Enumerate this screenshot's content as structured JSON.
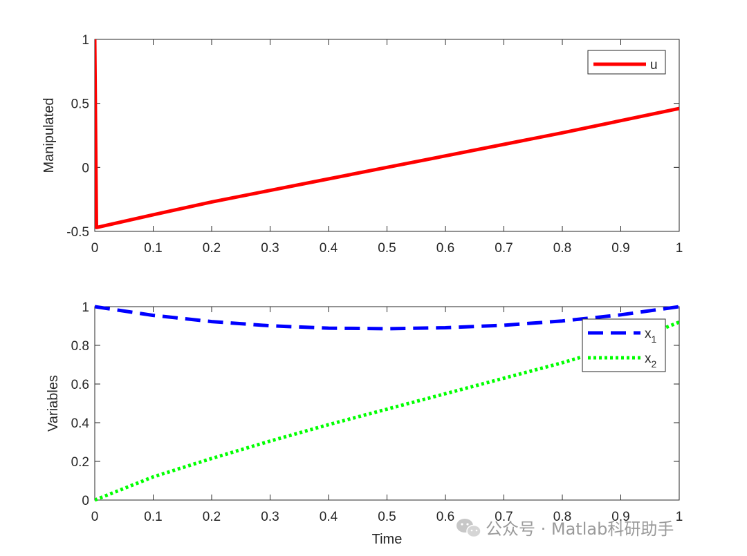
{
  "chart_data": [
    {
      "type": "line",
      "ylabel": "Manipulated",
      "xlabel": "",
      "xlim": [
        0,
        1
      ],
      "ylim": [
        -0.5,
        1
      ],
      "xticks": [
        "0",
        "0.1",
        "0.2",
        "0.3",
        "0.4",
        "0.5",
        "0.6",
        "0.7",
        "0.8",
        "0.9",
        "1"
      ],
      "yticks": [
        "-0.5",
        "0",
        "0.5",
        "1"
      ],
      "legend_position": "top-right",
      "series": [
        {
          "name": "u",
          "color": "#ff0000",
          "style": "solid",
          "x": [
            0,
            0.003,
            0.1,
            0.2,
            0.3,
            0.4,
            0.5,
            0.6,
            0.7,
            0.8,
            0.9,
            1.0
          ],
          "y": [
            1.0,
            -0.47,
            -0.37,
            -0.27,
            -0.18,
            -0.09,
            0.0,
            0.09,
            0.18,
            0.27,
            0.365,
            0.46
          ]
        }
      ]
    },
    {
      "type": "line",
      "ylabel": "Variables",
      "xlabel": "Time",
      "xlim": [
        0,
        1
      ],
      "ylim": [
        0,
        1
      ],
      "xticks": [
        "0",
        "0.1",
        "0.2",
        "0.3",
        "0.4",
        "0.5",
        "0.6",
        "0.7",
        "0.8",
        "0.9",
        "1"
      ],
      "yticks": [
        "0",
        "0.2",
        "0.4",
        "0.6",
        "0.8",
        "1"
      ],
      "legend_position": "top-right",
      "series": [
        {
          "name": "x",
          "subscript": "1",
          "color": "#0000ff",
          "style": "dashed",
          "x": [
            0,
            0.1,
            0.2,
            0.3,
            0.4,
            0.5,
            0.6,
            0.7,
            0.8,
            0.9,
            1.0
          ],
          "y": [
            1.0,
            0.955,
            0.923,
            0.901,
            0.889,
            0.886,
            0.891,
            0.904,
            0.926,
            0.958,
            1.0
          ]
        },
        {
          "name": "x",
          "subscript": "2",
          "color": "#00ff00",
          "style": "dotted",
          "x": [
            0,
            0.1,
            0.2,
            0.3,
            0.4,
            0.5,
            0.6,
            0.7,
            0.8,
            0.9,
            1.0
          ],
          "y": [
            0.0,
            0.12,
            0.215,
            0.305,
            0.39,
            0.47,
            0.55,
            0.63,
            0.71,
            0.8,
            0.92
          ]
        }
      ]
    }
  ],
  "watermark": {
    "text": "公众号 · Matlab科研助手",
    "icon": "wechat-icon"
  }
}
